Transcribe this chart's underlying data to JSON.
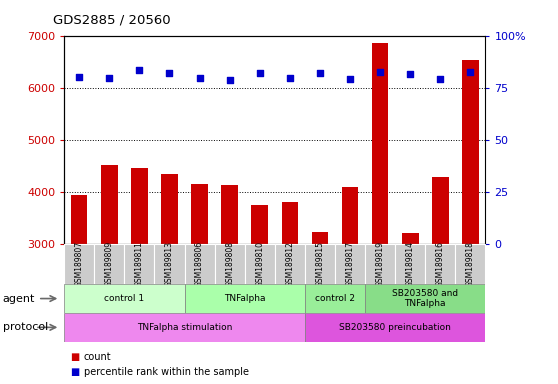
{
  "title": "GDS2885 / 20560",
  "samples": [
    "GSM189807",
    "GSM189809",
    "GSM189811",
    "GSM189813",
    "GSM189806",
    "GSM189808",
    "GSM189810",
    "GSM189812",
    "GSM189815",
    "GSM189817",
    "GSM189819",
    "GSM189814",
    "GSM189816",
    "GSM189818"
  ],
  "counts": [
    3950,
    4520,
    4470,
    4350,
    4150,
    4130,
    3750,
    3800,
    3230,
    4100,
    6870,
    3200,
    4280,
    6550
  ],
  "percentile_ranks": [
    80.5,
    80.0,
    84.0,
    82.5,
    80.0,
    79.0,
    82.5,
    80.0,
    82.5,
    79.5,
    83.0,
    82.0,
    79.5,
    83.0
  ],
  "bar_color": "#cc0000",
  "dot_color": "#0000cc",
  "ylim_left": [
    3000,
    7000
  ],
  "ylim_right": [
    0,
    100
  ],
  "yticks_left": [
    3000,
    4000,
    5000,
    6000,
    7000
  ],
  "yticks_right": [
    0,
    25,
    50,
    75,
    100
  ],
  "agent_groups": [
    {
      "label": "control 1",
      "start": 0,
      "end": 4,
      "color": "#ccffcc"
    },
    {
      "label": "TNFalpha",
      "start": 4,
      "end": 8,
      "color": "#aaffaa"
    },
    {
      "label": "control 2",
      "start": 8,
      "end": 10,
      "color": "#99ee99"
    },
    {
      "label": "SB203580 and\nTNFalpha",
      "start": 10,
      "end": 14,
      "color": "#88dd88"
    }
  ],
  "protocol_groups": [
    {
      "label": "TNFalpha stimulation",
      "start": 0,
      "end": 8,
      "color": "#ee88ee"
    },
    {
      "label": "SB203580 preincubation",
      "start": 8,
      "end": 14,
      "color": "#dd55dd"
    }
  ],
  "agent_label": "agent",
  "protocol_label": "protocol",
  "left_axis_color": "#cc0000",
  "right_axis_color": "#0000cc",
  "sample_bg_color": "#cccccc",
  "bar_bottom": 0
}
